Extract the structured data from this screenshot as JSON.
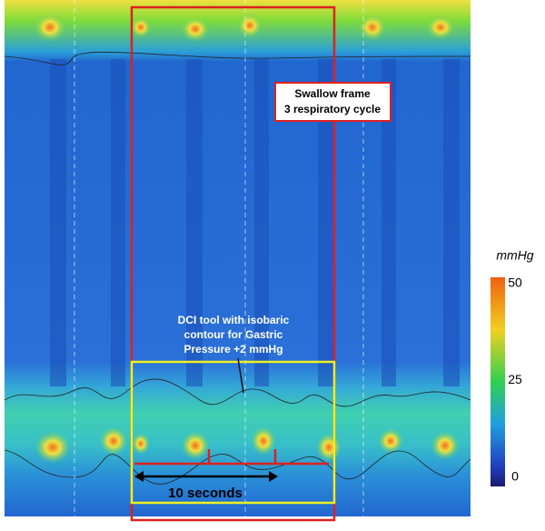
{
  "annotations": {
    "swallow_frame": [
      "Swallow frame",
      "3 respiratory cycle"
    ],
    "dci_tool": [
      "DCI tool with isobaric",
      "contour for Gastric",
      "Pressure +2 mmHg"
    ],
    "time_scale": "10 seconds"
  },
  "colorbar": {
    "unit": "mmHg",
    "ticks": [
      50,
      25,
      0
    ]
  }
}
